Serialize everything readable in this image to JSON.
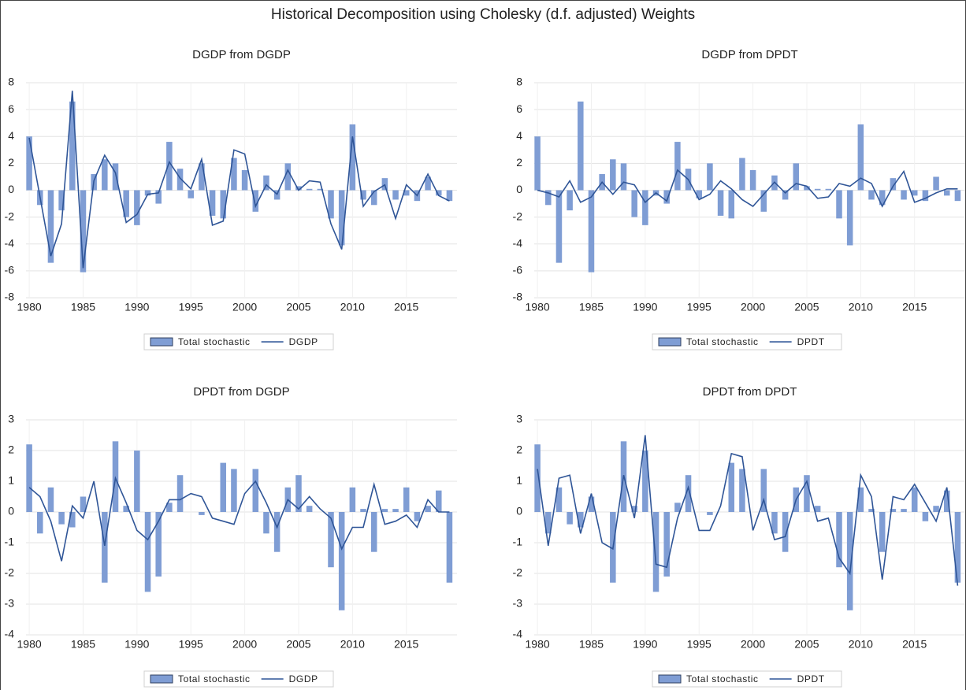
{
  "title": "Historical Decomposition using Cholesky (d.f. adjusted) Weights",
  "chart_data": [
    {
      "type": "bar",
      "title": "DGDP from DGDP",
      "x": [
        1980,
        1981,
        1982,
        1983,
        1984,
        1985,
        1986,
        1987,
        1988,
        1989,
        1990,
        1991,
        1992,
        1993,
        1994,
        1995,
        1996,
        1997,
        1998,
        1999,
        2000,
        2001,
        2002,
        2003,
        2004,
        2005,
        2006,
        2007,
        2008,
        2009,
        2010,
        2011,
        2012,
        2013,
        2014,
        2015,
        2016,
        2017,
        2018,
        2019
      ],
      "xlim": [
        1979.7,
        2019.7
      ],
      "xticks": [
        1980,
        1985,
        1990,
        1995,
        2000,
        2005,
        2010,
        2015
      ],
      "ylim": [
        -8,
        8
      ],
      "yticks": [
        -8,
        -6,
        -4,
        -2,
        0,
        2,
        4,
        6,
        8
      ],
      "grid": true,
      "legend": "bottom",
      "series": [
        {
          "name": "Total stochastic",
          "type": "bar",
          "color": "#7f9dd4",
          "values": [
            4.0,
            -1.1,
            -5.4,
            -1.5,
            6.6,
            -6.1,
            1.2,
            2.3,
            2.0,
            -2.0,
            -2.6,
            -0.4,
            -1.0,
            3.6,
            1.6,
            -0.6,
            2.0,
            -1.9,
            -2.1,
            2.4,
            1.5,
            -1.6,
            1.1,
            -0.7,
            2.0,
            0.3,
            0.1,
            0.1,
            -2.1,
            -4.1,
            4.9,
            -0.7,
            -1.1,
            0.9,
            -0.7,
            -0.4,
            -0.8,
            1.0,
            -0.4,
            -0.8
          ]
        },
        {
          "name": "DGDP",
          "type": "line",
          "color": "#2f5597",
          "values": [
            3.9,
            -0.5,
            -4.9,
            -2.5,
            7.4,
            -5.8,
            0.7,
            2.6,
            1.3,
            -2.4,
            -1.8,
            -0.3,
            -0.2,
            2.1,
            0.9,
            0.1,
            2.3,
            -2.6,
            -2.3,
            3.0,
            2.7,
            -1.2,
            0.4,
            -0.3,
            1.5,
            0.0,
            0.7,
            0.6,
            -2.5,
            -4.4,
            4.0,
            -1.2,
            -0.1,
            0.4,
            -2.1,
            0.4,
            -0.4,
            1.2,
            -0.4,
            -0.8
          ]
        }
      ]
    },
    {
      "type": "bar",
      "title": "DGDP from DPDT",
      "x": [
        1980,
        1981,
        1982,
        1983,
        1984,
        1985,
        1986,
        1987,
        1988,
        1989,
        1990,
        1991,
        1992,
        1993,
        1994,
        1995,
        1996,
        1997,
        1998,
        1999,
        2000,
        2001,
        2002,
        2003,
        2004,
        2005,
        2006,
        2007,
        2008,
        2009,
        2010,
        2011,
        2012,
        2013,
        2014,
        2015,
        2016,
        2017,
        2018,
        2019
      ],
      "xlim": [
        1979.7,
        2019.7
      ],
      "xticks": [
        1980,
        1985,
        1990,
        1995,
        2000,
        2005,
        2010,
        2015
      ],
      "ylim": [
        -8,
        8
      ],
      "yticks": [
        -8,
        -6,
        -4,
        -2,
        0,
        2,
        4,
        6,
        8
      ],
      "grid": true,
      "legend": "bottom",
      "series": [
        {
          "name": "Total stochastic",
          "type": "bar",
          "color": "#7f9dd4",
          "values": [
            4.0,
            -1.1,
            -5.4,
            -1.5,
            6.6,
            -6.1,
            1.2,
            2.3,
            2.0,
            -2.0,
            -2.6,
            -0.4,
            -1.0,
            3.6,
            1.6,
            -0.6,
            2.0,
            -1.9,
            -2.1,
            2.4,
            1.5,
            -1.6,
            1.1,
            -0.7,
            2.0,
            0.3,
            0.1,
            0.1,
            -2.1,
            -4.1,
            4.9,
            -0.7,
            -1.1,
            0.9,
            -0.7,
            -0.4,
            -0.8,
            1.0,
            -0.4,
            -0.8
          ]
        },
        {
          "name": "DPDT",
          "type": "line",
          "color": "#2f5597",
          "values": [
            0.0,
            -0.2,
            -0.5,
            0.7,
            -0.9,
            -0.5,
            0.6,
            -0.3,
            0.6,
            0.4,
            -0.9,
            -0.2,
            -0.8,
            1.5,
            0.8,
            -0.7,
            -0.3,
            0.7,
            0.1,
            -0.7,
            -1.2,
            -0.3,
            0.6,
            -0.2,
            0.5,
            0.3,
            -0.6,
            -0.5,
            0.5,
            0.3,
            0.9,
            0.5,
            -1.2,
            0.3,
            1.4,
            -0.9,
            -0.6,
            -0.2,
            0.1,
            0.1
          ]
        }
      ]
    },
    {
      "type": "bar",
      "title": "DPDT from DGDP",
      "x": [
        1980,
        1981,
        1982,
        1983,
        1984,
        1985,
        1986,
        1987,
        1988,
        1989,
        1990,
        1991,
        1992,
        1993,
        1994,
        1995,
        1996,
        1997,
        1998,
        1999,
        2000,
        2001,
        2002,
        2003,
        2004,
        2005,
        2006,
        2007,
        2008,
        2009,
        2010,
        2011,
        2012,
        2013,
        2014,
        2015,
        2016,
        2017,
        2018,
        2019
      ],
      "xlim": [
        1979.7,
        2019.7
      ],
      "xticks": [
        1980,
        1985,
        1990,
        1995,
        2000,
        2005,
        2010,
        2015
      ],
      "ylim": [
        -4,
        3
      ],
      "yticks": [
        -4,
        -3,
        -2,
        -1,
        0,
        1,
        2,
        3
      ],
      "grid": true,
      "legend": "bottom",
      "series": [
        {
          "name": "Total stochastic",
          "type": "bar",
          "color": "#7f9dd4",
          "values": [
            2.2,
            -0.7,
            0.8,
            -0.4,
            -0.5,
            0.5,
            0.0,
            -2.3,
            2.3,
            0.2,
            2.0,
            -2.6,
            -2.1,
            0.3,
            1.2,
            0.0,
            -0.1,
            0.0,
            1.6,
            1.4,
            0.0,
            1.4,
            -0.7,
            -1.3,
            0.8,
            1.2,
            0.2,
            0.0,
            -1.8,
            -3.2,
            0.8,
            0.1,
            -1.3,
            0.1,
            0.1,
            0.8,
            -0.3,
            0.2,
            0.7,
            -2.3
          ]
        },
        {
          "name": "DGDP",
          "type": "line",
          "color": "#2f5597",
          "values": [
            0.8,
            0.5,
            -0.3,
            -1.6,
            0.2,
            -0.2,
            1.0,
            -1.1,
            1.1,
            0.3,
            -0.6,
            -0.9,
            -0.3,
            0.4,
            0.4,
            0.6,
            0.5,
            -0.2,
            -0.3,
            -0.4,
            0.6,
            1.0,
            0.3,
            -0.5,
            0.4,
            0.1,
            0.5,
            0.1,
            -0.2,
            -1.2,
            -0.5,
            -0.5,
            0.9,
            -0.4,
            -0.3,
            -0.1,
            -0.5,
            0.4,
            0.0,
            0.0
          ]
        }
      ]
    },
    {
      "type": "bar",
      "title": "DPDT from DPDT",
      "x": [
        1980,
        1981,
        1982,
        1983,
        1984,
        1985,
        1986,
        1987,
        1988,
        1989,
        1990,
        1991,
        1992,
        1993,
        1994,
        1995,
        1996,
        1997,
        1998,
        1999,
        2000,
        2001,
        2002,
        2003,
        2004,
        2005,
        2006,
        2007,
        2008,
        2009,
        2010,
        2011,
        2012,
        2013,
        2014,
        2015,
        2016,
        2017,
        2018,
        2019
      ],
      "xlim": [
        1979.7,
        2019.7
      ],
      "xticks": [
        1980,
        1985,
        1990,
        1995,
        2000,
        2005,
        2010,
        2015
      ],
      "ylim": [
        -4,
        3
      ],
      "yticks": [
        -4,
        -3,
        -2,
        -1,
        0,
        1,
        2,
        3
      ],
      "grid": true,
      "legend": "bottom",
      "series": [
        {
          "name": "Total stochastic",
          "type": "bar",
          "color": "#7f9dd4",
          "values": [
            2.2,
            -0.7,
            0.8,
            -0.4,
            -0.5,
            0.5,
            0.0,
            -2.3,
            2.3,
            0.2,
            2.0,
            -2.6,
            -2.1,
            0.3,
            1.2,
            0.0,
            -0.1,
            0.0,
            1.6,
            1.4,
            0.0,
            1.4,
            -0.7,
            -1.3,
            0.8,
            1.2,
            0.2,
            0.0,
            -1.8,
            -3.2,
            0.8,
            0.1,
            -1.3,
            0.1,
            0.1,
            0.8,
            -0.3,
            0.2,
            0.7,
            -2.3
          ]
        },
        {
          "name": "DPDT",
          "type": "line",
          "color": "#2f5597",
          "values": [
            1.4,
            -1.1,
            1.1,
            1.2,
            -0.7,
            0.6,
            -1.0,
            -1.2,
            1.2,
            -0.2,
            2.5,
            -1.7,
            -1.8,
            -0.2,
            0.8,
            -0.6,
            -0.6,
            0.2,
            1.9,
            1.8,
            -0.6,
            0.4,
            -0.9,
            -0.8,
            0.4,
            1.0,
            -0.3,
            -0.2,
            -1.5,
            -2.0,
            1.2,
            0.5,
            -2.2,
            0.5,
            0.4,
            0.9,
            0.3,
            -0.3,
            0.8,
            -2.4
          ]
        }
      ]
    }
  ]
}
